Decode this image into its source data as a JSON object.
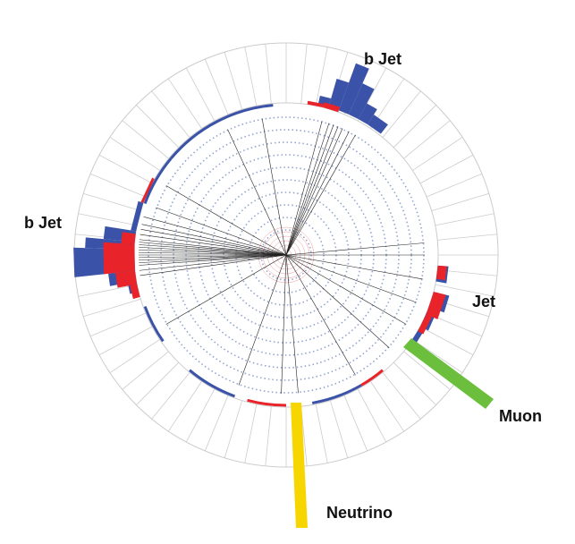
{
  "labels": {
    "top_jet": "b Jet",
    "left_jet": "b Jet",
    "right_jet": "Jet",
    "muon": "Muon",
    "neutrino": "Neutrino"
  }
}
